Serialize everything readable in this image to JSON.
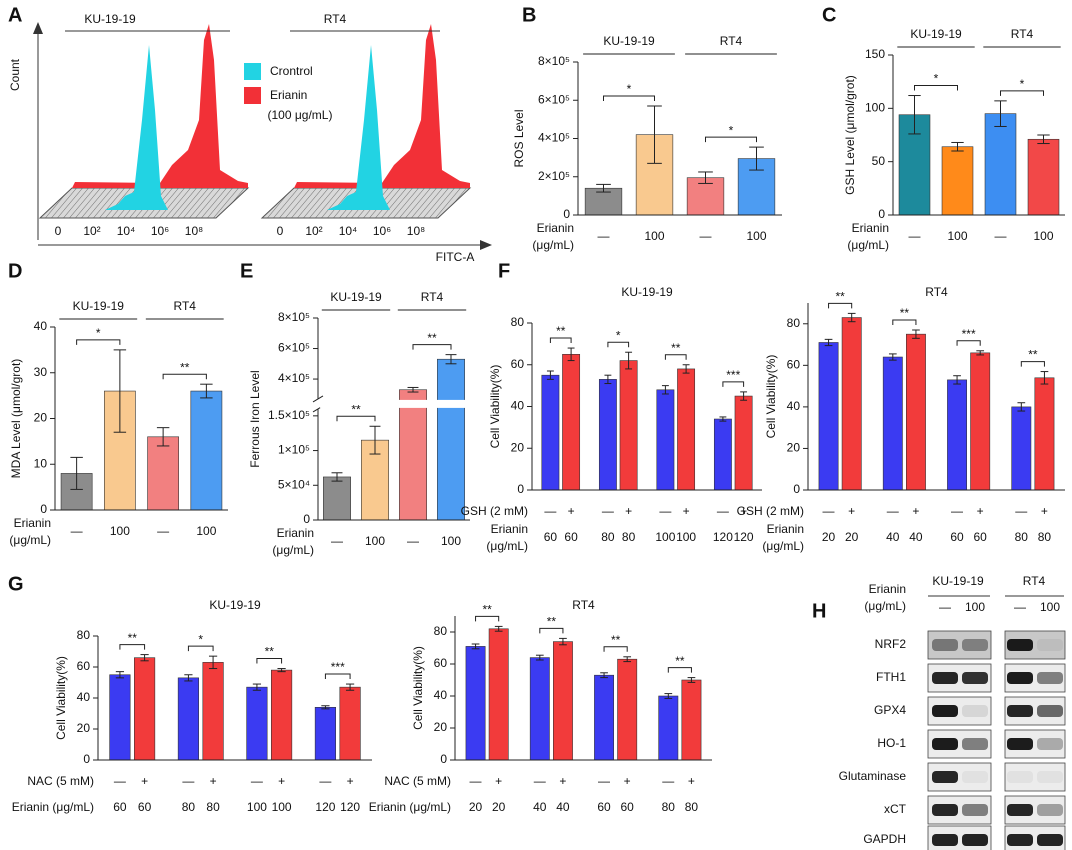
{
  "panel_a": {
    "panel": "A",
    "groups": [
      "KU-19-19",
      "RT4"
    ],
    "ylabel": "Count",
    "xlabel": "FITC-A",
    "xticks": [
      "0",
      "10²",
      "10⁴",
      "10⁶",
      "10⁸"
    ],
    "legend": [
      {
        "name": "Crontrol",
        "color": "#22d3e3"
      },
      {
        "name": "Erianin",
        "color": "#f23037"
      }
    ],
    "legend_note": "(100 μg/mL)"
  },
  "chart_data": [
    {
      "type": "bar",
      "panel": "B",
      "group_labels": [
        "KU-19-19",
        "RT4"
      ],
      "ylabel": "ROS Level",
      "ylim": [
        0,
        800000
      ],
      "yticks": [
        0,
        {
          "value": 200000,
          "label": "2×10⁵"
        },
        {
          "value": 400000,
          "label": "4×10⁵"
        },
        {
          "value": 600000,
          "label": "6×10⁵"
        },
        {
          "value": 800000,
          "label": "8×10⁵"
        }
      ],
      "values": [
        140000,
        420000,
        195000,
        295000
      ],
      "errors": [
        20000,
        150000,
        30000,
        60000
      ],
      "colors": [
        "#8c8c8c",
        "#f9c98f",
        "#f28080",
        "#4d9cf2"
      ],
      "significance": [
        "*",
        "*"
      ],
      "rows": [
        {
          "label": [
            "Erianin",
            "(μg/mL)"
          ],
          "categories": [
            "—",
            "100",
            "—",
            "100"
          ]
        }
      ]
    },
    {
      "type": "bar",
      "panel": "C",
      "group_labels": [
        "KU-19-19",
        "RT4"
      ],
      "ylabel": "GSH Level (μmol/grot)",
      "ylim": [
        0,
        150
      ],
      "yticks": [
        0,
        50,
        100,
        150
      ],
      "values": [
        94,
        64,
        95,
        71
      ],
      "errors": [
        18,
        4,
        12,
        4
      ],
      "colors": [
        "#1d8a9c",
        "#ff8a1a",
        "#3d8ef2",
        "#f24848"
      ],
      "significance": [
        "*",
        "*"
      ],
      "rows": [
        {
          "label": [
            "Erianin",
            "(μg/mL)"
          ],
          "categories": [
            "—",
            "100",
            "—",
            "100"
          ]
        }
      ]
    },
    {
      "type": "bar",
      "panel": "D",
      "group_labels": [
        "KU-19-19",
        "RT4"
      ],
      "ylabel": "MDA Level (μmol/grot)",
      "ylim": [
        0,
        40
      ],
      "yticks": [
        0,
        10,
        20,
        30,
        40
      ],
      "values": [
        8,
        26,
        16,
        26
      ],
      "errors": [
        3.5,
        9,
        2,
        1.5
      ],
      "colors": [
        "#8c8c8c",
        "#f9c98f",
        "#f28080",
        "#4d9cf2"
      ],
      "significance": [
        "*",
        "**"
      ],
      "rows": [
        {
          "label": [
            "Erianin",
            "(μg/mL)"
          ],
          "categories": [
            "—",
            "100",
            "—",
            "100"
          ]
        }
      ]
    },
    {
      "type": "bar",
      "panel": "E",
      "group_labels": [
        "KU-19-19",
        "RT4"
      ],
      "ylabel": "Ferrous Iron Level",
      "ylim": [
        0,
        800000
      ],
      "ybreak": [
        160000,
        270000
      ],
      "yticks": [
        0,
        {
          "value": 50000,
          "label": "5×10⁴"
        },
        {
          "value": 100000,
          "label": "1×10⁵"
        },
        {
          "value": 150000,
          "label": "1.5×10⁵"
        },
        {
          "value": 400000,
          "label": "4×10⁵"
        },
        {
          "value": 600000,
          "label": "6×10⁵"
        },
        {
          "value": 800000,
          "label": "8×10⁵"
        }
      ],
      "values": [
        62000,
        115000,
        330000,
        530000
      ],
      "errors": [
        6000,
        20000,
        15000,
        30000
      ],
      "colors": [
        "#8c8c8c",
        "#f9c98f",
        "#f28080",
        "#4d9cf2"
      ],
      "significance": [
        "**",
        "**"
      ],
      "rows": [
        {
          "label": [
            "Erianin",
            "(μg/mL)"
          ],
          "categories": [
            "—",
            "100",
            "—",
            "100"
          ]
        }
      ]
    },
    {
      "type": "bar",
      "panel": "F",
      "title": "KU-19-19",
      "ylabel": "Cell Viability(%)",
      "ylim": [
        0,
        80
      ],
      "yticks": [
        0,
        20,
        40,
        60,
        80
      ],
      "values": [
        55,
        65,
        53,
        62,
        48,
        58,
        34,
        45
      ],
      "errors": [
        2,
        3,
        2,
        4,
        2,
        2,
        1,
        2
      ],
      "colors": [
        "#3b3bf2",
        "#f23b3b",
        "#3b3bf2",
        "#f23b3b",
        "#3b3bf2",
        "#f23b3b",
        "#3b3bf2",
        "#f23b3b"
      ],
      "significance": [
        "**",
        "*",
        "**",
        "***"
      ],
      "rows": [
        {
          "label": [
            "GSH (2 mM)"
          ],
          "categories": [
            "—",
            "+",
            "—",
            "+",
            "—",
            "+",
            "—",
            "+"
          ]
        },
        {
          "label": [
            "Erianin",
            "(μg/mL)"
          ],
          "categories": [
            "60",
            "60",
            "80",
            "80",
            "100",
            "100",
            "120",
            "120"
          ]
        }
      ]
    },
    {
      "type": "bar",
      "title": "RT4",
      "ylabel": "Cell Viability(%)",
      "ylim": [
        0,
        90
      ],
      "yticks": [
        0,
        20,
        40,
        60,
        80
      ],
      "values": [
        71,
        83,
        64,
        75,
        53,
        66,
        40,
        54
      ],
      "errors": [
        1.5,
        2,
        1.5,
        2,
        2,
        1,
        2,
        3
      ],
      "colors": [
        "#3b3bf2",
        "#f23b3b",
        "#3b3bf2",
        "#f23b3b",
        "#3b3bf2",
        "#f23b3b",
        "#3b3bf2",
        "#f23b3b"
      ],
      "significance": [
        "**",
        "**",
        "***",
        "**"
      ],
      "rows": [
        {
          "label": [
            "GSH (2 mM)"
          ],
          "categories": [
            "—",
            "+",
            "—",
            "+",
            "—",
            "+",
            "—",
            "+"
          ]
        },
        {
          "label": [
            "Erianin",
            "(μg/mL)"
          ],
          "categories": [
            "20",
            "20",
            "40",
            "40",
            "60",
            "60",
            "80",
            "80"
          ]
        }
      ]
    },
    {
      "type": "bar",
      "panel": "G",
      "title": "KU-19-19",
      "ylabel": "Cell Viability(%)",
      "ylim": [
        0,
        80
      ],
      "yticks": [
        0,
        20,
        40,
        60,
        80
      ],
      "values": [
        55,
        66,
        53,
        63,
        47,
        58,
        34,
        47
      ],
      "errors": [
        2,
        2,
        2,
        4,
        2,
        1,
        1,
        2
      ],
      "colors": [
        "#3b3bf2",
        "#f23b3b",
        "#3b3bf2",
        "#f23b3b",
        "#3b3bf2",
        "#f23b3b",
        "#3b3bf2",
        "#f23b3b"
      ],
      "significance": [
        "**",
        "*",
        "**",
        "***"
      ],
      "rows": [
        {
          "label": [
            "NAC (5 mM)"
          ],
          "categories": [
            "—",
            "+",
            "—",
            "+",
            "—",
            "+",
            "—",
            "+"
          ]
        },
        {
          "label": [
            "Erianin (μg/mL)"
          ],
          "categories": [
            "60",
            "60",
            "80",
            "80",
            "100",
            "100",
            "120",
            "120"
          ]
        }
      ]
    },
    {
      "type": "bar",
      "title": "RT4",
      "ylabel": "Cell Viability(%)",
      "ylim": [
        0,
        90
      ],
      "yticks": [
        0,
        20,
        40,
        60,
        80
      ],
      "values": [
        71,
        82,
        64,
        74,
        53,
        63,
        40,
        50
      ],
      "errors": [
        1.5,
        1.5,
        1.5,
        2,
        1.5,
        1.5,
        1.5,
        1.5
      ],
      "colors": [
        "#3b3bf2",
        "#f23b3b",
        "#3b3bf2",
        "#f23b3b",
        "#3b3bf2",
        "#f23b3b",
        "#3b3bf2",
        "#f23b3b"
      ],
      "significance": [
        "**",
        "**",
        "**",
        "**"
      ],
      "rows": [
        {
          "label": [
            "NAC (5 mM)"
          ],
          "categories": [
            "—",
            "+",
            "—",
            "+",
            "—",
            "+",
            "—",
            "+"
          ]
        },
        {
          "label": [
            "Erianin (μg/mL)"
          ],
          "categories": [
            "20",
            "20",
            "40",
            "40",
            "60",
            "60",
            "80",
            "80"
          ]
        }
      ]
    }
  ],
  "panel_h": {
    "panel": "H",
    "groups": [
      "KU-19-19",
      "RT4"
    ],
    "row_label": [
      "Erianin",
      "(μg/mL)"
    ],
    "lanes": [
      "—",
      "100",
      "—",
      "100"
    ],
    "proteins": [
      "NRF2",
      "FTH1",
      "GPX4",
      "HO-1",
      "Glutaminase",
      "xCT",
      "GAPDH"
    ]
  }
}
